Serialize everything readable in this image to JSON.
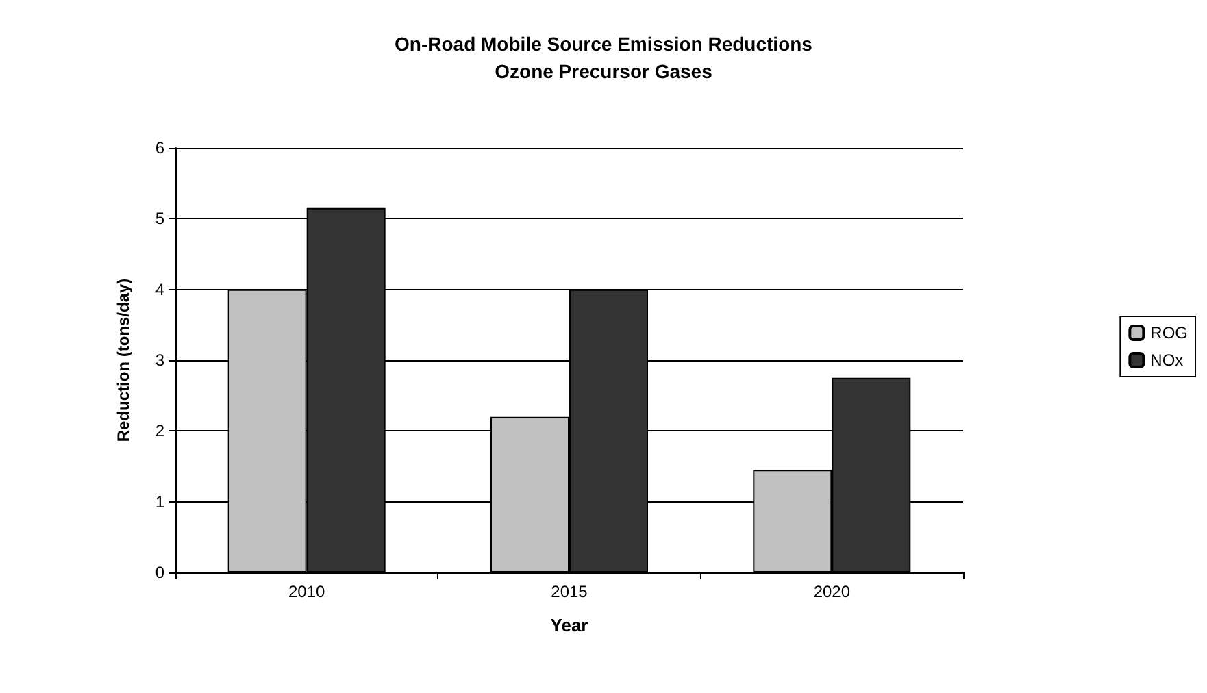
{
  "chart_data": {
    "type": "bar",
    "title": "On-Road Mobile Source Emission Reductions",
    "subtitle": "Ozone Precursor Gases",
    "xlabel": "Year",
    "ylabel": "Reduction (tons/day)",
    "categories": [
      "2010",
      "2015",
      "2020"
    ],
    "series": [
      {
        "name": "ROG",
        "color": "#c0c0c0",
        "values": [
          4.0,
          2.2,
          1.45
        ]
      },
      {
        "name": "NOx",
        "color": "#333333",
        "values": [
          5.15,
          4.0,
          2.75
        ]
      }
    ],
    "ylim": [
      0,
      6
    ],
    "yticks": [
      0,
      1,
      2,
      3,
      4,
      5,
      6
    ],
    "grid": "y",
    "legend": "right"
  }
}
